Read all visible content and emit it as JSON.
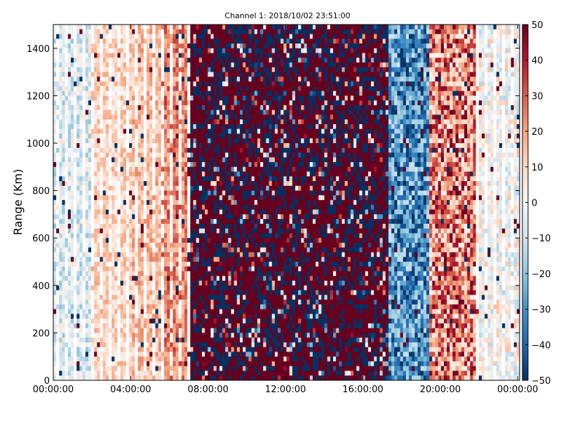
{
  "chart_data": {
    "type": "heatmap",
    "title": "Channel 1: 2018/10/02 23:51:00",
    "xlabel": "",
    "ylabel": "Range (Km)",
    "x_ticks": [
      "00:00:00",
      "04:00:00",
      "08:00:00",
      "12:00:00",
      "16:00:00",
      "20:00:00",
      "00:00:00"
    ],
    "x_tick_values_hours": [
      0,
      4,
      8,
      12,
      16,
      20,
      24
    ],
    "xlim_hours": [
      0,
      24.1
    ],
    "y_ticks": [
      "0",
      "200",
      "400",
      "600",
      "800",
      "1000",
      "1200",
      "1400"
    ],
    "y_tick_values": [
      0,
      200,
      400,
      600,
      800,
      1000,
      1200,
      1400
    ],
    "ylim": [
      0,
      1500
    ],
    "colorbar": {
      "ticks": [
        "50",
        "40",
        "30",
        "20",
        "10",
        "0",
        "−10",
        "−20",
        "−30",
        "−40",
        "−50"
      ],
      "tick_values": [
        50,
        40,
        30,
        20,
        10,
        0,
        -10,
        -20,
        -30,
        -40,
        -50
      ],
      "range": [
        -50,
        50
      ],
      "colormap": "RdBu_r",
      "colors": [
        "#053061",
        "#2166ac",
        "#4393c3",
        "#92c5de",
        "#d1e5f0",
        "#f7f7f7",
        "#fddbc7",
        "#f4a582",
        "#d6604d",
        "#b2182b",
        "#67001f"
      ]
    },
    "segments": [
      {
        "start_hour": 0.0,
        "end_hour": 2.0,
        "mean_value": -6,
        "noise": 14
      },
      {
        "start_hour": 2.0,
        "end_hour": 4.0,
        "mean_value": 10,
        "noise": 10
      },
      {
        "start_hour": 4.0,
        "end_hour": 5.5,
        "mean_value": 15,
        "noise": 10
      },
      {
        "start_hour": 5.5,
        "end_hour": 7.0,
        "mean_value": 24,
        "noise": 12
      },
      {
        "start_hour": 7.0,
        "end_hour": 17.3,
        "mean_value": 45,
        "noise": 70
      },
      {
        "start_hour": 17.3,
        "end_hour": 19.5,
        "mean_value": -30,
        "noise": 20
      },
      {
        "start_hour": 19.5,
        "end_hour": 22.0,
        "mean_value": 25,
        "noise": 25
      },
      {
        "start_hour": 22.0,
        "end_hour": 24.1,
        "mean_value": 0,
        "noise": 15
      }
    ]
  }
}
